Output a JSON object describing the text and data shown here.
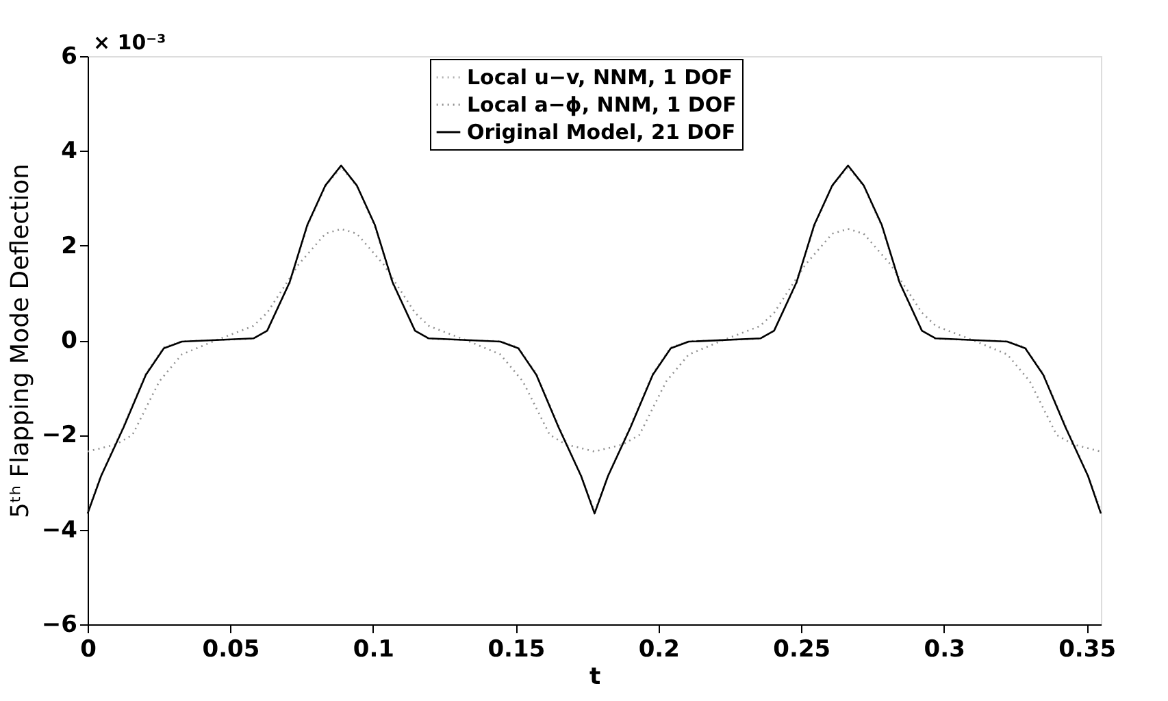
{
  "chart_data": {
    "type": "line",
    "xlabel": "t",
    "ylabel": "5ᵗʰ Flapping Mode Deflection",
    "annotations": [
      "× 10⁻³"
    ],
    "xlim": [
      0,
      0.355
    ],
    "xticks": [
      0,
      0.05,
      0.1,
      0.15,
      0.2,
      0.25,
      0.3,
      0.35
    ],
    "ylim": [
      -6,
      6
    ],
    "yticks": [
      -6,
      -4,
      -2,
      0,
      2,
      4,
      6
    ],
    "grid": false,
    "legend": "top",
    "marker": "none",
    "series": [
      {
        "name": "Local u−v, NNM, 1 DOF",
        "color": "#b0b0b0",
        "line_style": "dotted",
        "x": [
          0,
          0.0047,
          0.0126,
          0.0204,
          0.0267,
          0.033,
          0.0582,
          0.0629,
          0.0708,
          0.077,
          0.0833,
          0.0888,
          0.0943,
          0.1006,
          0.1068,
          0.1147,
          0.1194,
          0.1446,
          0.1509,
          0.1572,
          0.165,
          0.1729,
          0.1776,
          0.1823,
          0.1902,
          0.198,
          0.2043,
          0.2106,
          0.2358,
          0.2405,
          0.2484,
          0.2546,
          0.2609,
          0.2664,
          0.2719,
          0.2782,
          0.2844,
          0.2923,
          0.297,
          0.3222,
          0.3285,
          0.3348,
          0.3426,
          0.3505,
          0.355
        ],
        "values": [
          -3.6,
          -2.85,
          -1.8,
          -0.7,
          -0.15,
          -0.02,
          0.03,
          0.2,
          1.2,
          2.4,
          3.25,
          3.65,
          3.25,
          2.4,
          1.2,
          0.2,
          0.03,
          -0.02,
          -0.15,
          -0.7,
          -1.8,
          -2.85,
          -3.6,
          -2.85,
          -1.8,
          -0.7,
          -0.15,
          -0.02,
          0.03,
          0.2,
          1.2,
          2.4,
          3.25,
          3.65,
          3.25,
          2.4,
          1.2,
          0.2,
          0.03,
          -0.02,
          -0.15,
          -0.7,
          -1.8,
          -2.85,
          -3.6
        ]
      },
      {
        "name": "Local a−ϕ, NNM, 1 DOF",
        "color": "#909090",
        "line_style": "dotted",
        "x": [
          0,
          0.01,
          0.0157,
          0.0251,
          0.033,
          0.045,
          0.058,
          0.0629,
          0.0739,
          0.0833,
          0.0888,
          0.0943,
          0.1037,
          0.1147,
          0.1196,
          0.1326,
          0.1446,
          0.1525,
          0.1619,
          0.1676,
          0.1776,
          0.1876,
          0.1933,
          0.2027,
          0.2106,
          0.2226,
          0.2356,
          0.2405,
          0.2515,
          0.2609,
          0.2664,
          0.2719,
          0.2813,
          0.2923,
          0.2972,
          0.3102,
          0.3222,
          0.3301,
          0.3395,
          0.3452,
          0.355
        ],
        "values": [
          -2.35,
          -2.2,
          -2.0,
          -0.87,
          -0.3,
          0,
          0.3,
          0.58,
          1.6,
          2.25,
          2.35,
          2.25,
          1.6,
          0.58,
          0.3,
          0,
          -0.3,
          -0.87,
          -2.0,
          -2.2,
          -2.35,
          -2.2,
          -2.0,
          -0.87,
          -0.3,
          0,
          0.3,
          0.58,
          1.6,
          2.25,
          2.35,
          2.25,
          1.6,
          0.58,
          0.3,
          0,
          -0.3,
          -0.87,
          -2.0,
          -2.2,
          -2.35
        ]
      },
      {
        "name": "Original Model, 21 DOF",
        "color": "#000000",
        "line_style": "solid",
        "x": [
          0,
          0.0047,
          0.0126,
          0.0204,
          0.0267,
          0.033,
          0.0582,
          0.0629,
          0.0708,
          0.077,
          0.0833,
          0.0888,
          0.0943,
          0.1006,
          0.1068,
          0.1147,
          0.1194,
          0.1446,
          0.1509,
          0.1572,
          0.165,
          0.1729,
          0.1776,
          0.1823,
          0.1902,
          0.198,
          0.2043,
          0.2106,
          0.2358,
          0.2405,
          0.2484,
          0.2546,
          0.2609,
          0.2664,
          0.2719,
          0.2782,
          0.2844,
          0.2923,
          0.297,
          0.3222,
          0.3285,
          0.3348,
          0.3426,
          0.3505,
          0.355
        ],
        "values": [
          -3.66,
          -2.87,
          -1.84,
          -0.73,
          -0.17,
          -0.03,
          0.04,
          0.2,
          1.23,
          2.44,
          3.27,
          3.69,
          3.27,
          2.44,
          1.23,
          0.2,
          0.04,
          -0.03,
          -0.17,
          -0.73,
          -1.84,
          -2.87,
          -3.66,
          -2.87,
          -1.84,
          -0.73,
          -0.17,
          -0.03,
          0.04,
          0.2,
          1.23,
          2.44,
          3.27,
          3.69,
          3.27,
          2.44,
          1.23,
          0.2,
          0.04,
          -0.03,
          -0.17,
          -0.73,
          -1.84,
          -2.87,
          -3.66
        ]
      }
    ]
  }
}
